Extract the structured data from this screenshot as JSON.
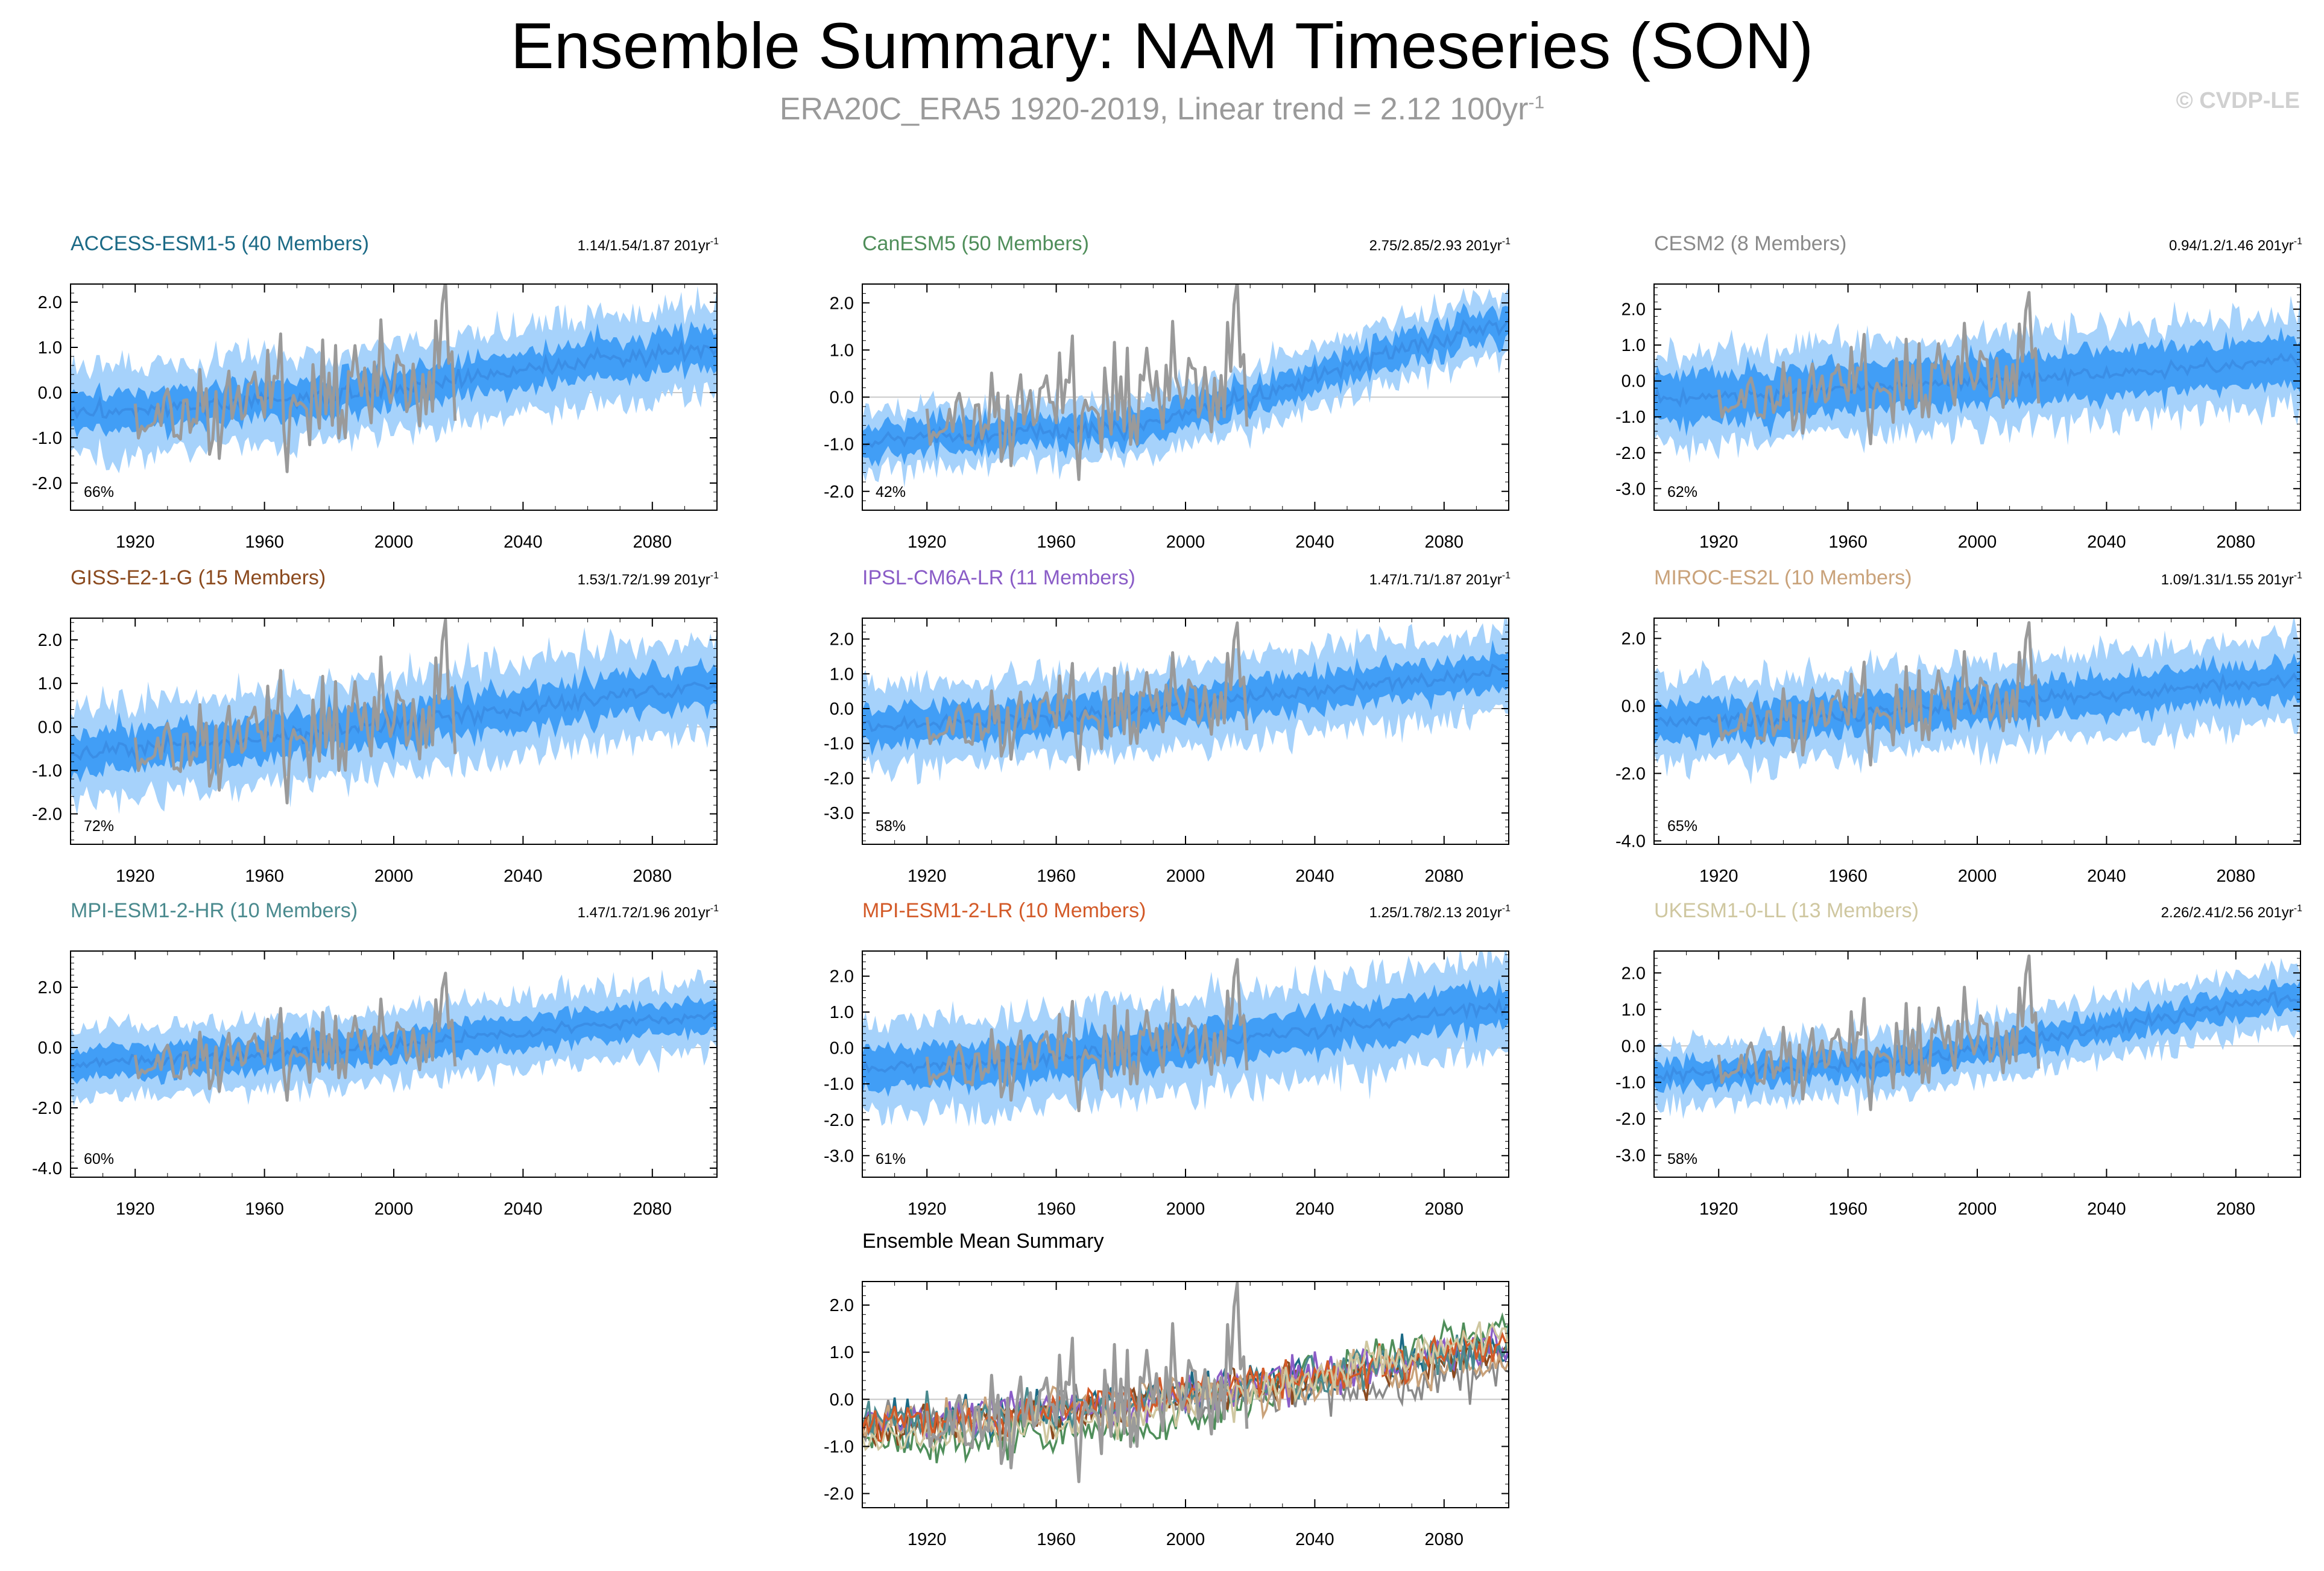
{
  "title": "Ensemble Summary: NAM Timeseries (SON)",
  "subtitle": {
    "text": "ERA20C_ERA5 1920-2019, Linear trend = 2.12 100yr",
    "sup": "-1"
  },
  "copyright": "© CVDP-LE",
  "colors": {
    "band_outer": "#a6d2fb",
    "band_inner": "#2f95f4",
    "mean_line": "#3a8ee6",
    "observations": "#9a9a9a",
    "axis": "#000000"
  },
  "chart_data": [
    {
      "type": "line",
      "title": "ACCESS-ESM1-5 (40 Members)",
      "title_color": "#1b6a86",
      "trend_label": "1.14/1.54/1.87 201yr",
      "trend_sup": "-1",
      "percent_label": "66%",
      "xlim": [
        1900,
        2100
      ],
      "ylim": [
        -2.6,
        2.4
      ],
      "yticks": [
        2,
        1,
        0,
        -1,
        -2
      ],
      "ytick_labels": [
        "2.0",
        "1.0",
        "0.0",
        "-1.0",
        "-2.0"
      ],
      "xticks": [
        1920,
        1960,
        2000,
        2040,
        2080
      ],
      "xtick_labels": [
        "1920",
        "1960",
        "2000",
        "2040",
        "2080"
      ],
      "ensemble_mean": {
        "x": [
          1900,
          1940,
          1980,
          2020,
          2060,
          2100
        ],
        "y": [
          -0.45,
          -0.3,
          -0.1,
          0.3,
          0.7,
          1.0
        ]
      },
      "spread_inner": 0.45,
      "spread_outer": 1.0,
      "obs_range": [
        1920,
        2019
      ],
      "obs_trend": [
        -0.8,
        0.7
      ]
    },
    {
      "type": "line",
      "title": "CanESM5 (50 Members)",
      "title_color": "#4f8e5a",
      "trend_label": "2.75/2.85/2.93 201yr",
      "trend_sup": "-1",
      "percent_label": "42%",
      "xlim": [
        1900,
        2100
      ],
      "ylim": [
        -2.4,
        2.4
      ],
      "yticks": [
        2,
        1,
        0,
        -1,
        -2
      ],
      "ytick_labels": [
        "2.0",
        "1.0",
        "0.0",
        "-1.0",
        "-2.0"
      ],
      "xticks": [
        1920,
        1960,
        2000,
        2040,
        2080
      ],
      "xtick_labels": [
        "1920",
        "1960",
        "2000",
        "2040",
        "2080"
      ],
      "ensemble_mean": {
        "x": [
          1900,
          1940,
          1980,
          2020,
          2060,
          2100
        ],
        "y": [
          -0.9,
          -0.8,
          -0.7,
          0.0,
          0.9,
          1.6
        ]
      },
      "spread_inner": 0.35,
      "spread_outer": 0.65,
      "obs_range": [
        1920,
        2019
      ],
      "obs_trend": [
        -0.8,
        0.7
      ]
    },
    {
      "type": "line",
      "title": "CESM2 (8 Members)",
      "title_color": "#8a8a8a",
      "trend_label": "0.94/1.2/1.46 201yr",
      "trend_sup": "-1",
      "percent_label": "62%",
      "xlim": [
        1900,
        2100
      ],
      "ylim": [
        -3.6,
        2.7
      ],
      "yticks": [
        2,
        1,
        0,
        -1,
        -2,
        -3
      ],
      "ytick_labels": [
        "2.0",
        "1.0",
        "0.0",
        "-1.0",
        "-2.0",
        "-3.0"
      ],
      "xticks": [
        1920,
        1960,
        2000,
        2040,
        2080
      ],
      "xtick_labels": [
        "1920",
        "1960",
        "2000",
        "2040",
        "2080"
      ],
      "ensemble_mean": {
        "x": [
          1900,
          1940,
          1980,
          2020,
          2060,
          2100
        ],
        "y": [
          -0.5,
          -0.35,
          -0.1,
          0.1,
          0.3,
          0.6
        ]
      },
      "spread_inner": 0.7,
      "spread_outer": 1.3,
      "obs_range": [
        1920,
        2019
      ],
      "obs_trend": [
        -0.8,
        0.7
      ]
    },
    {
      "type": "line",
      "title": "GISS-E2-1-G (15 Members)",
      "title_color": "#8b4a1e",
      "trend_label": "1.53/1.72/1.99 201yr",
      "trend_sup": "-1",
      "percent_label": "72%",
      "xlim": [
        1900,
        2100
      ],
      "ylim": [
        -2.7,
        2.5
      ],
      "yticks": [
        2,
        1,
        0,
        -1,
        -2
      ],
      "ytick_labels": [
        "2.0",
        "1.0",
        "0.0",
        "-1.0",
        "-2.0"
      ],
      "xticks": [
        1920,
        1960,
        2000,
        2040,
        2080
      ],
      "xtick_labels": [
        "1920",
        "1960",
        "2000",
        "2040",
        "2080"
      ],
      "ensemble_mean": {
        "x": [
          1900,
          1940,
          1980,
          2020,
          2060,
          2100
        ],
        "y": [
          -0.6,
          -0.4,
          -0.1,
          0.25,
          0.6,
          1.0
        ]
      },
      "spread_inner": 0.5,
      "spread_outer": 1.1,
      "obs_range": [
        1920,
        2019
      ],
      "obs_trend": [
        -0.8,
        0.7
      ]
    },
    {
      "type": "line",
      "title": "IPSL-CM6A-LR (11 Members)",
      "title_color": "#8a5cc7",
      "trend_label": "1.47/1.71/1.87 201yr",
      "trend_sup": "-1",
      "percent_label": "58%",
      "xlim": [
        1900,
        2100
      ],
      "ylim": [
        -3.9,
        2.6
      ],
      "yticks": [
        2,
        1,
        0,
        -1,
        -2,
        -3
      ],
      "ytick_labels": [
        "2.0",
        "1.0",
        "0.0",
        "-1.0",
        "-2.0",
        "-3.0"
      ],
      "xticks": [
        1920,
        1960,
        2000,
        2040,
        2080
      ],
      "xtick_labels": [
        "1920",
        "1960",
        "2000",
        "2040",
        "2080"
      ],
      "ensemble_mean": {
        "x": [
          1900,
          1940,
          1980,
          2020,
          2060,
          2100
        ],
        "y": [
          -0.5,
          -0.35,
          -0.1,
          0.3,
          0.7,
          1.1
        ]
      },
      "spread_inner": 0.55,
      "spread_outer": 1.2,
      "obs_range": [
        1920,
        2019
      ],
      "obs_trend": [
        -0.8,
        0.7
      ]
    },
    {
      "type": "line",
      "title": "MIROC-ES2L (10 Members)",
      "title_color": "#c9a27a",
      "trend_label": "1.09/1.31/1.55 201yr",
      "trend_sup": "-1",
      "percent_label": "65%",
      "xlim": [
        1900,
        2100
      ],
      "ylim": [
        -4.1,
        2.6
      ],
      "yticks": [
        2,
        0,
        -2,
        -4
      ],
      "ytick_labels": [
        "2.0",
        "0.0",
        "-2.0",
        "-4.0"
      ],
      "xticks": [
        1920,
        1960,
        2000,
        2040,
        2080
      ],
      "xtick_labels": [
        "1920",
        "1960",
        "2000",
        "2040",
        "2080"
      ],
      "ensemble_mean": {
        "x": [
          1900,
          1940,
          1980,
          2020,
          2060,
          2100
        ],
        "y": [
          -0.5,
          -0.4,
          -0.1,
          0.2,
          0.5,
          0.8
        ]
      },
      "spread_inner": 0.6,
      "spread_outer": 1.3,
      "obs_range": [
        1920,
        2019
      ],
      "obs_trend": [
        -0.8,
        0.7
      ]
    },
    {
      "type": "line",
      "title": "MPI-ESM1-2-HR (10 Members)",
      "title_color": "#4a8a8e",
      "trend_label": "1.47/1.72/1.96 201yr",
      "trend_sup": "-1",
      "percent_label": "60%",
      "xlim": [
        1900,
        2100
      ],
      "ylim": [
        -4.3,
        3.2
      ],
      "yticks": [
        2,
        0,
        -2,
        -4
      ],
      "ytick_labels": [
        "2.0",
        "0.0",
        "-2.0",
        "-4.0"
      ],
      "xticks": [
        1920,
        1960,
        2000,
        2040,
        2080
      ],
      "xtick_labels": [
        "1920",
        "1960",
        "2000",
        "2040",
        "2080"
      ],
      "ensemble_mean": {
        "x": [
          1900,
          1940,
          1980,
          2020,
          2060,
          2100
        ],
        "y": [
          -0.5,
          -0.35,
          -0.1,
          0.3,
          0.7,
          1.1
        ]
      },
      "spread_inner": 0.55,
      "spread_outer": 1.2,
      "obs_range": [
        1920,
        2019
      ],
      "obs_trend": [
        -0.8,
        0.7
      ]
    },
    {
      "type": "line",
      "title": "MPI-ESM1-2-LR (10 Members)",
      "title_color": "#d35a28",
      "trend_label": "1.25/1.78/2.13 201yr",
      "trend_sup": "-1",
      "percent_label": "61%",
      "xlim": [
        1900,
        2100
      ],
      "ylim": [
        -3.6,
        2.7
      ],
      "yticks": [
        2,
        1,
        0,
        -1,
        -2,
        -3
      ],
      "ytick_labels": [
        "2.0",
        "1.0",
        "0.0",
        "-1.0",
        "-2.0",
        "-3.0"
      ],
      "xticks": [
        1920,
        1960,
        2000,
        2040,
        2080
      ],
      "xtick_labels": [
        "1920",
        "1960",
        "2000",
        "2040",
        "2080"
      ],
      "ensemble_mean": {
        "x": [
          1900,
          1940,
          1980,
          2020,
          2060,
          2100
        ],
        "y": [
          -0.6,
          -0.4,
          -0.1,
          0.3,
          0.7,
          1.2
        ]
      },
      "spread_inner": 0.6,
      "spread_outer": 1.3,
      "obs_range": [
        1920,
        2019
      ],
      "obs_trend": [
        -0.8,
        0.7
      ]
    },
    {
      "type": "line",
      "title": "UKESM1-0-LL (13 Members)",
      "title_color": "#cfc7a0",
      "trend_label": "2.26/2.41/2.56 201yr",
      "trend_sup": "-1",
      "percent_label": "58%",
      "xlim": [
        1900,
        2100
      ],
      "ylim": [
        -3.6,
        2.6
      ],
      "yticks": [
        2,
        1,
        0,
        -1,
        -2,
        -3
      ],
      "ytick_labels": [
        "2.0",
        "1.0",
        "0.0",
        "-1.0",
        "-2.0",
        "-3.0"
      ],
      "xticks": [
        1920,
        1960,
        2000,
        2040,
        2080
      ],
      "xtick_labels": [
        "1920",
        "1960",
        "2000",
        "2040",
        "2080"
      ],
      "ensemble_mean": {
        "x": [
          1900,
          1940,
          1980,
          2020,
          2060,
          2100
        ],
        "y": [
          -0.8,
          -0.65,
          -0.4,
          0.2,
          0.8,
          1.4
        ]
      },
      "spread_inner": 0.4,
      "spread_outer": 0.85,
      "obs_range": [
        1920,
        2019
      ],
      "obs_trend": [
        -0.8,
        0.7
      ]
    },
    {
      "type": "line",
      "title": "Ensemble Mean Summary",
      "title_color": "#000000",
      "trend_label": "",
      "trend_sup": "",
      "percent_label": "",
      "summary": true,
      "xlim": [
        1900,
        2100
      ],
      "ylim": [
        -2.3,
        2.5
      ],
      "yticks": [
        2,
        1,
        0,
        -1,
        -2
      ],
      "ytick_labels": [
        "2.0",
        "1.0",
        "0.0",
        "-1.0",
        "-2.0"
      ],
      "xticks": [
        1920,
        1960,
        2000,
        2040,
        2080
      ],
      "xtick_labels": [
        "1920",
        "1960",
        "2000",
        "2040",
        "2080"
      ],
      "series_colors": [
        "#1b6a86",
        "#4f8e5a",
        "#8a8a8a",
        "#8b4a1e",
        "#8a5cc7",
        "#c9a27a",
        "#4a8a8e",
        "#d35a28",
        "#cfc7a0"
      ],
      "obs_range": [
        1920,
        2019
      ],
      "obs_trend": [
        -0.8,
        0.7
      ]
    }
  ]
}
